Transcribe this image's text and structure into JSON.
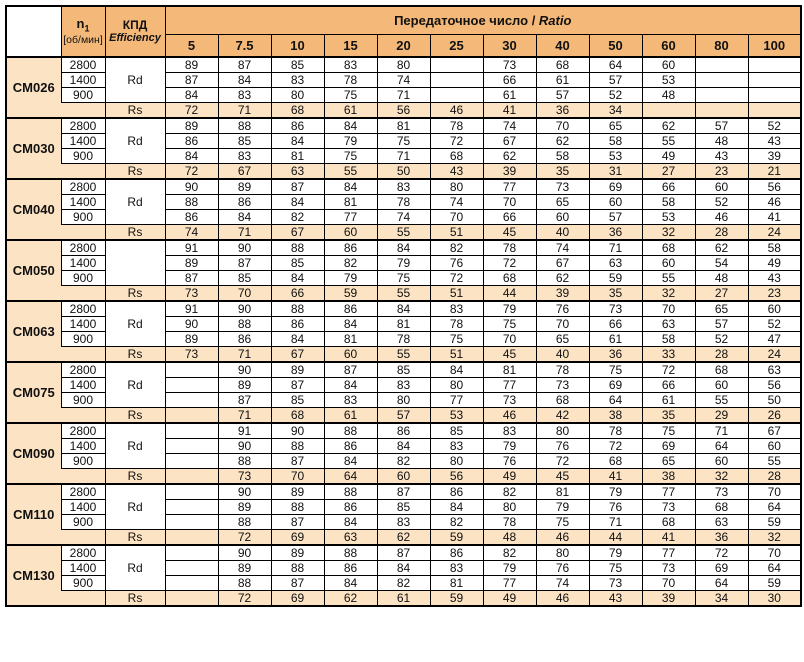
{
  "header": {
    "n1_label": "n",
    "n1_sub": "1",
    "n1_unit": "[об/мин]",
    "eff_ru": "КПД",
    "eff_en": "Efficiency",
    "ratio_ru": "Передаточное число / ",
    "ratio_en": "Ratio",
    "ratios": [
      "5",
      "7.5",
      "10",
      "15",
      "20",
      "25",
      "30",
      "40",
      "50",
      "60",
      "80",
      "100"
    ]
  },
  "colors": {
    "header_orange": "#F4B879",
    "light_orange": "#FCE3C3",
    "border": "#000000"
  },
  "models": [
    {
      "name": "CM026",
      "rd_label": "Rd",
      "rs_label": "Rs",
      "rows": [
        {
          "speed": "2800",
          "values": [
            "89",
            "87",
            "85",
            "83",
            "80",
            "",
            "73",
            "68",
            "64",
            "60",
            "",
            ""
          ]
        },
        {
          "speed": "1400",
          "values": [
            "87",
            "84",
            "83",
            "78",
            "74",
            "",
            "66",
            "61",
            "57",
            "53",
            "",
            ""
          ]
        },
        {
          "speed": "900",
          "values": [
            "84",
            "83",
            "80",
            "75",
            "71",
            "",
            "61",
            "57",
            "52",
            "48",
            "",
            ""
          ]
        }
      ],
      "rs_values": [
        "72",
        "71",
        "68",
        "61",
        "56",
        "46",
        "41",
        "36",
        "34",
        "",
        "",
        ""
      ]
    },
    {
      "name": "CM030",
      "rd_label": "Rd",
      "rs_label": "Rs",
      "rows": [
        {
          "speed": "2800",
          "values": [
            "89",
            "88",
            "86",
            "84",
            "81",
            "78",
            "74",
            "70",
            "65",
            "62",
            "57",
            "52"
          ]
        },
        {
          "speed": "1400",
          "values": [
            "86",
            "85",
            "84",
            "79",
            "75",
            "72",
            "67",
            "62",
            "58",
            "55",
            "48",
            "43"
          ]
        },
        {
          "speed": "900",
          "values": [
            "84",
            "83",
            "81",
            "75",
            "71",
            "68",
            "62",
            "58",
            "53",
            "49",
            "43",
            "39"
          ]
        }
      ],
      "rs_values": [
        "72",
        "67",
        "63",
        "55",
        "50",
        "43",
        "39",
        "35",
        "31",
        "27",
        "23",
        "21"
      ]
    },
    {
      "name": "CM040",
      "rd_label": "Rd",
      "rs_label": "Rs",
      "rows": [
        {
          "speed": "2800",
          "values": [
            "90",
            "89",
            "87",
            "84",
            "83",
            "80",
            "77",
            "73",
            "69",
            "66",
            "60",
            "56"
          ]
        },
        {
          "speed": "1400",
          "values": [
            "88",
            "86",
            "84",
            "81",
            "78",
            "74",
            "70",
            "65",
            "60",
            "58",
            "52",
            "46"
          ]
        },
        {
          "speed": "900",
          "values": [
            "86",
            "84",
            "82",
            "77",
            "74",
            "70",
            "66",
            "60",
            "57",
            "53",
            "46",
            "41"
          ]
        }
      ],
      "rs_values": [
        "74",
        "71",
        "67",
        "60",
        "55",
        "51",
        "45",
        "40",
        "36",
        "32",
        "28",
        "24"
      ]
    },
    {
      "name": "CM050",
      "rd_label": "",
      "rs_label": "Rs",
      "rows": [
        {
          "speed": "2800",
          "values": [
            "91",
            "90",
            "88",
            "86",
            "84",
            "82",
            "78",
            "74",
            "71",
            "68",
            "62",
            "58"
          ]
        },
        {
          "speed": "1400",
          "values": [
            "89",
            "87",
            "85",
            "82",
            "79",
            "76",
            "72",
            "67",
            "63",
            "60",
            "54",
            "49"
          ]
        },
        {
          "speed": "900",
          "values": [
            "87",
            "85",
            "84",
            "79",
            "75",
            "72",
            "68",
            "62",
            "59",
            "55",
            "48",
            "43"
          ]
        }
      ],
      "rs_values": [
        "73",
        "70",
        "66",
        "59",
        "55",
        "51",
        "44",
        "39",
        "35",
        "32",
        "27",
        "23"
      ]
    },
    {
      "name": "CM063",
      "rd_label": "Rd",
      "rs_label": "Rs",
      "rows": [
        {
          "speed": "2800",
          "values": [
            "91",
            "90",
            "88",
            "86",
            "84",
            "83",
            "79",
            "76",
            "73",
            "70",
            "65",
            "60"
          ]
        },
        {
          "speed": "1400",
          "values": [
            "90",
            "88",
            "86",
            "84",
            "81",
            "78",
            "75",
            "70",
            "66",
            "63",
            "57",
            "52"
          ]
        },
        {
          "speed": "900",
          "values": [
            "89",
            "86",
            "84",
            "81",
            "78",
            "75",
            "70",
            "65",
            "61",
            "58",
            "52",
            "47"
          ]
        }
      ],
      "rs_values": [
        "73",
        "71",
        "67",
        "60",
        "55",
        "51",
        "45",
        "40",
        "36",
        "33",
        "28",
        "24"
      ]
    },
    {
      "name": "CM075",
      "rd_label": "Rd",
      "rs_label": "Rs",
      "rows": [
        {
          "speed": "2800",
          "values": [
            "",
            "90",
            "89",
            "87",
            "85",
            "84",
            "81",
            "78",
            "75",
            "72",
            "68",
            "63"
          ]
        },
        {
          "speed": "1400",
          "values": [
            "",
            "89",
            "87",
            "84",
            "83",
            "80",
            "77",
            "73",
            "69",
            "66",
            "60",
            "56"
          ]
        },
        {
          "speed": "900",
          "values": [
            "",
            "87",
            "85",
            "83",
            "80",
            "77",
            "73",
            "68",
            "64",
            "61",
            "55",
            "50"
          ]
        }
      ],
      "rs_values": [
        "",
        "71",
        "68",
        "61",
        "57",
        "53",
        "46",
        "42",
        "38",
        "35",
        "29",
        "26"
      ]
    },
    {
      "name": "CM090",
      "rd_label": "Rd",
      "rs_label": "Rs",
      "rows": [
        {
          "speed": "2800",
          "values": [
            "",
            "91",
            "90",
            "88",
            "86",
            "85",
            "83",
            "80",
            "78",
            "75",
            "71",
            "67"
          ]
        },
        {
          "speed": "1400",
          "values": [
            "",
            "90",
            "88",
            "86",
            "84",
            "83",
            "79",
            "76",
            "72",
            "69",
            "64",
            "60"
          ]
        },
        {
          "speed": "900",
          "values": [
            "",
            "88",
            "87",
            "84",
            "82",
            "80",
            "76",
            "72",
            "68",
            "65",
            "60",
            "55"
          ]
        }
      ],
      "rs_values": [
        "",
        "73",
        "70",
        "64",
        "60",
        "56",
        "49",
        "45",
        "41",
        "38",
        "32",
        "28"
      ]
    },
    {
      "name": "CM110",
      "rd_label": "Rd",
      "rs_label": "Rs",
      "rows": [
        {
          "speed": "2800",
          "values": [
            "",
            "90",
            "89",
            "88",
            "87",
            "86",
            "82",
            "81",
            "79",
            "77",
            "73",
            "70"
          ]
        },
        {
          "speed": "1400",
          "values": [
            "",
            "89",
            "88",
            "86",
            "85",
            "84",
            "80",
            "79",
            "76",
            "73",
            "68",
            "64"
          ]
        },
        {
          "speed": "900",
          "values": [
            "",
            "88",
            "87",
            "84",
            "83",
            "82",
            "78",
            "75",
            "71",
            "68",
            "63",
            "59"
          ]
        }
      ],
      "rs_values": [
        "",
        "72",
        "69",
        "63",
        "62",
        "59",
        "48",
        "46",
        "44",
        "41",
        "36",
        "32"
      ]
    },
    {
      "name": "CM130",
      "rd_label": "Rd",
      "rs_label": "Rs",
      "rows": [
        {
          "speed": "2800",
          "values": [
            "",
            "90",
            "89",
            "88",
            "87",
            "86",
            "82",
            "80",
            "79",
            "77",
            "72",
            "70"
          ]
        },
        {
          "speed": "1400",
          "values": [
            "",
            "89",
            "88",
            "86",
            "84",
            "83",
            "79",
            "76",
            "75",
            "73",
            "69",
            "64"
          ]
        },
        {
          "speed": "900",
          "values": [
            "",
            "88",
            "87",
            "84",
            "82",
            "81",
            "77",
            "74",
            "73",
            "70",
            "64",
            "59"
          ]
        }
      ],
      "rs_values": [
        "",
        "72",
        "69",
        "62",
        "61",
        "59",
        "49",
        "46",
        "43",
        "39",
        "34",
        "30"
      ]
    }
  ]
}
